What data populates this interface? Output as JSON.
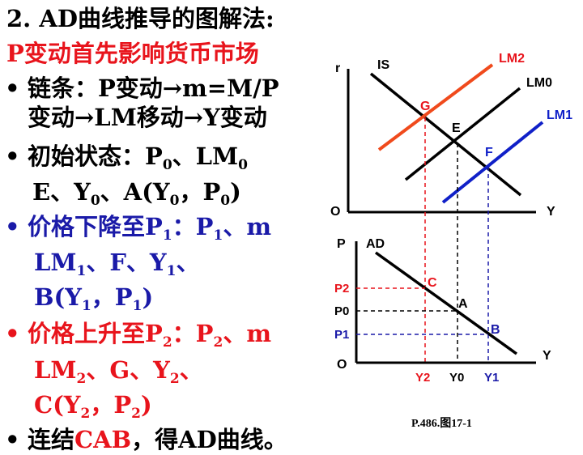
{
  "title": "2. AD曲线推导的图解法:",
  "subtitle": "P变动首先影响货币市场",
  "bullets": [
    {
      "text1": "链条：P变动→m=M/P",
      "text2": "变动→LM移动→Y变动"
    },
    {
      "text1a": "初始状态：P",
      "sub1": "0",
      "text1b": "、LM",
      "sub2": "0",
      "t2a": "E、Y",
      "t2s1": "0",
      "t2b": "、A(Y",
      "t2s2": "0",
      "t2c": "，P",
      "t2s3": "0",
      "t2d": ")"
    },
    {
      "t1a": "价格下降至P",
      "t1s1": "1",
      "t1b": "：P",
      "t1s2": "1",
      "t1c": "、m",
      "t2a": "LM",
      "t2s1": "1",
      "t2b": "、F、Y",
      "t2s2": "1",
      "t2c": "、",
      "t3a": "B(Y",
      "t3s1": "1",
      "t3b": "，P",
      "t3s2": "1",
      "t3c": ")"
    },
    {
      "t1a": "价格上升至P",
      "t1s1": "2",
      "t1b": "：P",
      "t1s2": "2",
      "t1c": "、m",
      "t2a": "LM",
      "t2s1": "2",
      "t2b": "、G、Y",
      "t2s2": "2",
      "t2c": "、",
      "t3a": "C(Y",
      "t3s1": "2",
      "t3b": "，P",
      "t3s2": "2",
      "t3c": ")"
    },
    {
      "t1a": "连结",
      "t1b": "CAB",
      "t1c": "，得AD曲线。"
    }
  ],
  "bullet_symbol": "•",
  "diagram": {
    "top": {
      "y_axis": "r",
      "x_axis": "Y",
      "origin": "O",
      "curves": {
        "is": "IS",
        "lm0": "LM0",
        "lm1": "LM1",
        "lm2": "LM2"
      },
      "points": {
        "e": "E",
        "f": "F",
        "g": "G"
      }
    },
    "bottom": {
      "y_axis": "P",
      "x_axis": "Y",
      "origin": "O",
      "curve": "AD",
      "points": {
        "a": "A",
        "b": "B",
        "c": "C"
      },
      "p_ticks": {
        "p2": "P2",
        "p0": "P0",
        "p1": "P1"
      },
      "y_ticks": {
        "y2": "Y2",
        "y0": "Y0",
        "y1": "Y1"
      }
    }
  },
  "caption": "P.486.图17-1",
  "colors": {
    "red": "#e8141c",
    "blue": "#1a1aa8",
    "orange": "#f04a1c",
    "lm1_blue": "#1020c8"
  }
}
